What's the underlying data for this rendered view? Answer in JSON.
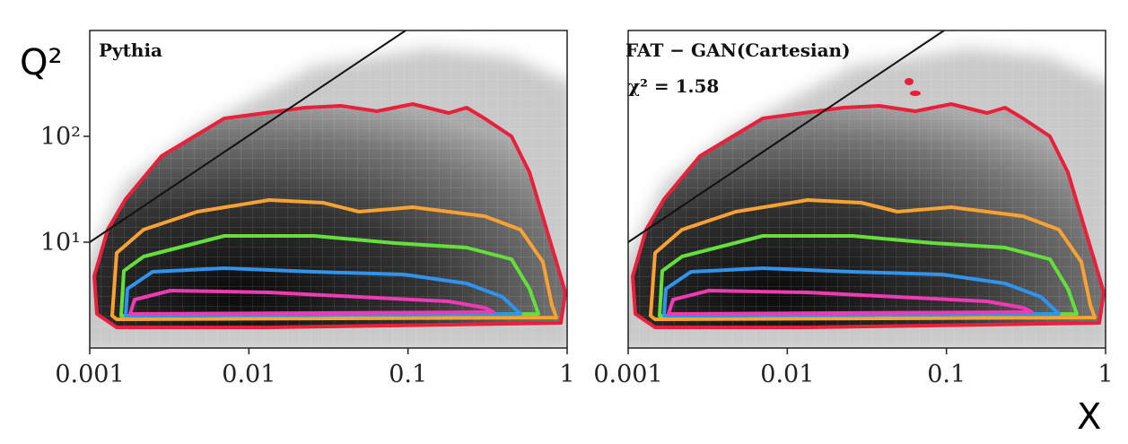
{
  "chart_data": [
    {
      "type": "heatmap",
      "title": "Pythia",
      "ylabel": "Q²",
      "log_x": true,
      "log_y": true,
      "xlim": [
        0.001,
        1
      ],
      "ylim": [
        1,
        1000
      ],
      "xticks": [
        0.001,
        0.01,
        0.1,
        1
      ],
      "yticks": [
        {
          "value": 10,
          "label": "10¹"
        },
        {
          "value": 100,
          "label": "10²"
        }
      ]
    },
    {
      "type": "heatmap",
      "title": "FAT − GAN(Cartesian)",
      "annotation": "χ² = 1.58",
      "xlabel": "X",
      "log_x": true,
      "log_y": true,
      "xlim": [
        0.001,
        1
      ],
      "ylim": [
        1,
        1000
      ],
      "xticks": [
        0.001,
        0.01,
        0.1,
        1
      ]
    }
  ]
}
